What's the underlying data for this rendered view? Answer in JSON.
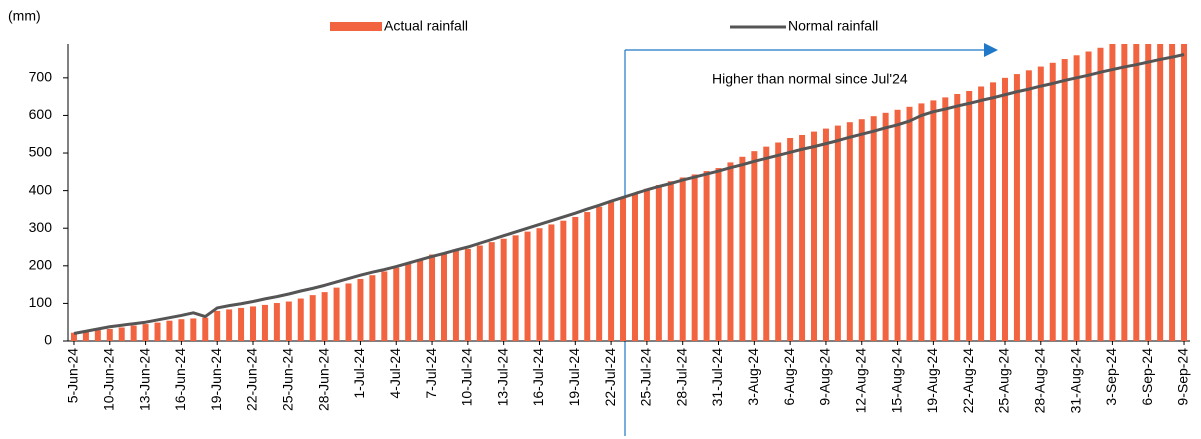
{
  "chart_data": {
    "type": "bar_line",
    "y_label": "(mm)",
    "annotation": "Higher than normal since Jul'24",
    "categories": [
      "5-Jun-24",
      null,
      null,
      "10-Jun-24",
      null,
      null,
      "13-Jun-24",
      null,
      null,
      "16-Jun-24",
      null,
      null,
      "19-Jun-24",
      null,
      null,
      "22-Jun-24",
      null,
      null,
      "25-Jun-24",
      null,
      null,
      "28-Jun-24",
      null,
      null,
      "1-Jul-24",
      null,
      null,
      "4-Jul-24",
      null,
      null,
      "7-Jul-24",
      null,
      null,
      "10-Jul-24",
      null,
      null,
      "13-Jul-24",
      null,
      null,
      "16-Jul-24",
      null,
      null,
      "19-Jul-24",
      null,
      null,
      "22-Jul-24",
      null,
      null,
      "25-Jul-24",
      null,
      null,
      "28-Jul-24",
      null,
      null,
      "31-Jul-24",
      null,
      null,
      "3-Aug-24",
      null,
      null,
      "6-Aug-24",
      null,
      null,
      "9-Aug-24",
      null,
      null,
      "12-Aug-24",
      null,
      null,
      "15-Aug-24",
      null,
      null,
      "19-Aug-24",
      null,
      null,
      "22-Aug-24",
      null,
      null,
      "25-Aug-24",
      null,
      null,
      "28-Aug-24",
      null,
      null,
      "31-Aug-24",
      null,
      null,
      "3-Sep-24",
      null,
      null,
      "6-Sep-24",
      null,
      null,
      "9-Sep-24"
    ],
    "series": [
      {
        "name": "Actual rainfall",
        "type": "bar",
        "color": "#f26440",
        "values": [
          22,
          25,
          29,
          32,
          36,
          41,
          45,
          49,
          54,
          58,
          60,
          62,
          80,
          84,
          88,
          92,
          96,
          101,
          105,
          113,
          122,
          130,
          142,
          153,
          165,
          175,
          185,
          195,
          207,
          218,
          230,
          235,
          240,
          245,
          254,
          263,
          272,
          281,
          291,
          300,
          310,
          320,
          330,
          343,
          357,
          370,
          382,
          393,
          405,
          415,
          425,
          435,
          443,
          452,
          460,
          475,
          490,
          505,
          517,
          528,
          540,
          548,
          557,
          565,
          573,
          582,
          590,
          598,
          607,
          615,
          623,
          632,
          640,
          648,
          657,
          665,
          677,
          688,
          700,
          710,
          720,
          730,
          740,
          750,
          760,
          770,
          780,
          790,
          790,
          790,
          790,
          790,
          790,
          790
        ]
      },
      {
        "name": "Normal rainfall",
        "type": "line",
        "color": "#555555",
        "values": [
          20,
          26,
          32,
          38,
          42,
          46,
          50,
          56,
          62,
          68,
          75,
          65,
          88,
          94,
          99,
          105,
          112,
          118,
          125,
          133,
          140,
          148,
          157,
          166,
          175,
          183,
          190,
          198,
          207,
          216,
          225,
          233,
          242,
          250,
          260,
          270,
          280,
          290,
          300,
          310,
          320,
          330,
          340,
          351,
          361,
          372,
          382,
          392,
          402,
          411,
          419,
          428,
          436,
          444,
          452,
          461,
          469,
          478,
          486,
          494,
          502,
          510,
          517,
          525,
          533,
          542,
          550,
          558,
          567,
          575,
          585,
          600,
          610,
          617,
          625,
          632,
          640,
          647,
          655,
          663,
          670,
          678,
          685,
          693,
          700,
          707,
          715,
          722,
          729,
          735,
          742,
          749,
          755,
          762
        ]
      }
    ],
    "ylim": [
      0,
      790
    ],
    "yticks": [
      0,
      100,
      200,
      300,
      400,
      500,
      600,
      700
    ]
  }
}
